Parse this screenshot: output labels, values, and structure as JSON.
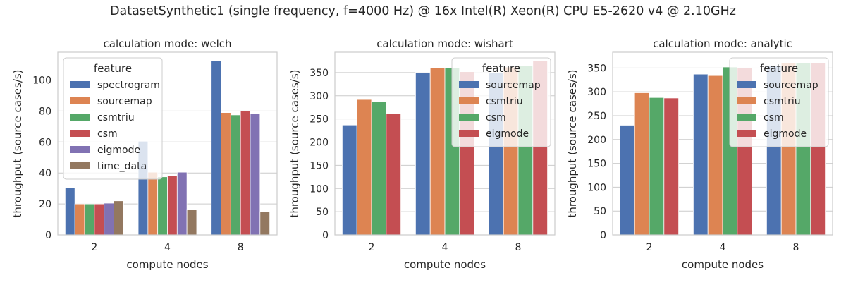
{
  "suptitle": "DatasetSynthetic1 (single frequency, f=4000 Hz) @ 16x Intel(R) Xeon(R) CPU E5-2620 v4 @ 2.10GHz",
  "colors": {
    "spectrogram": "#4c72b0",
    "sourcemap": "#dd8452",
    "csmtriu": "#55a868",
    "csm": "#c44e52",
    "eigmode": "#8172b3",
    "time_data": "#937860",
    "grid": "#cccccc",
    "spine": "#cccccc",
    "text": "#262626"
  },
  "chart_data": [
    {
      "type": "bar",
      "title": "calculation mode: welch",
      "xlabel": "compute nodes",
      "ylabel": "throughput (source cases/s)",
      "categories": [
        "2",
        "4",
        "8"
      ],
      "ylim": [
        0,
        118
      ],
      "yticks": [
        0,
        20,
        40,
        60,
        80,
        100
      ],
      "legend": {
        "title": "feature",
        "placement": "upper-left"
      },
      "grid": true,
      "series": [
        {
          "name": "spectrogram",
          "color_key": "spectrogram",
          "values": [
            30.5,
            60.5,
            112.5
          ]
        },
        {
          "name": "sourcemap",
          "color_key": "sourcemap",
          "values": [
            20,
            40.5,
            79
          ]
        },
        {
          "name": "csmtriu",
          "color_key": "csmtriu",
          "values": [
            20,
            37.5,
            77.5
          ]
        },
        {
          "name": "csm",
          "color_key": "csm",
          "values": [
            20,
            38,
            80
          ]
        },
        {
          "name": "eigmode",
          "color_key": "eigmode",
          "values": [
            20.5,
            40.5,
            78.5
          ]
        },
        {
          "name": "time_data",
          "color_key": "time_data",
          "values": [
            22,
            16.5,
            15
          ]
        }
      ]
    },
    {
      "type": "bar",
      "title": "calculation mode: wishart",
      "xlabel": "compute nodes",
      "ylabel": "throughput (source cases/s)",
      "categories": [
        "2",
        "4",
        "8"
      ],
      "ylim": [
        0,
        394
      ],
      "yticks": [
        0,
        50,
        100,
        150,
        200,
        250,
        300,
        350
      ],
      "legend": {
        "title": "feature",
        "placement": "upper-right"
      },
      "grid": true,
      "series": [
        {
          "name": "sourcemap",
          "color_key": "spectrogram",
          "values": [
            237,
            350,
            350
          ]
        },
        {
          "name": "csmtriu",
          "color_key": "sourcemap",
          "values": [
            292,
            360,
            362
          ]
        },
        {
          "name": "csm",
          "color_key": "csmtriu",
          "values": [
            288,
            360,
            365
          ]
        },
        {
          "name": "eigmode",
          "color_key": "csm",
          "values": [
            261,
            352,
            375
          ]
        }
      ]
    },
    {
      "type": "bar",
      "title": "calculation mode: analytic",
      "xlabel": "compute nodes",
      "ylabel": "throughput (source cases/s)",
      "categories": [
        "2",
        "4",
        "8"
      ],
      "ylim": [
        0,
        383
      ],
      "yticks": [
        0,
        50,
        100,
        150,
        200,
        250,
        300,
        350
      ],
      "legend": {
        "title": "feature",
        "placement": "upper-right"
      },
      "grid": true,
      "series": [
        {
          "name": "sourcemap",
          "color_key": "spectrogram",
          "values": [
            230,
            337,
            355
          ]
        },
        {
          "name": "csmtriu",
          "color_key": "sourcemap",
          "values": [
            298,
            334,
            360
          ]
        },
        {
          "name": "csm",
          "color_key": "csmtriu",
          "values": [
            288,
            352,
            360
          ]
        },
        {
          "name": "eigmode",
          "color_key": "csm",
          "values": [
            287,
            350,
            360
          ]
        }
      ]
    }
  ]
}
